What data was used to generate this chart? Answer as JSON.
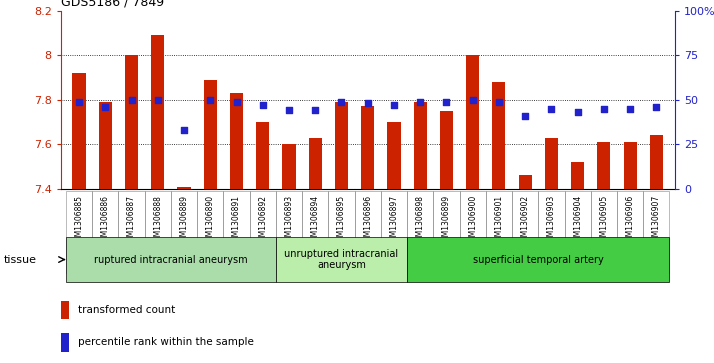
{
  "title": "GDS5186 / 7849",
  "samples": [
    "GSM1306885",
    "GSM1306886",
    "GSM1306887",
    "GSM1306888",
    "GSM1306889",
    "GSM1306890",
    "GSM1306891",
    "GSM1306892",
    "GSM1306893",
    "GSM1306894",
    "GSM1306895",
    "GSM1306896",
    "GSM1306897",
    "GSM1306898",
    "GSM1306899",
    "GSM1306900",
    "GSM1306901",
    "GSM1306902",
    "GSM1306903",
    "GSM1306904",
    "GSM1306905",
    "GSM1306906",
    "GSM1306907"
  ],
  "bar_values": [
    7.92,
    7.79,
    8.0,
    8.09,
    7.41,
    7.89,
    7.83,
    7.7,
    7.6,
    7.63,
    7.79,
    7.77,
    7.7,
    7.79,
    7.75,
    8.0,
    7.88,
    7.46,
    7.63,
    7.52,
    7.61,
    7.61,
    7.64
  ],
  "dot_values": [
    49,
    46,
    50,
    50,
    33,
    50,
    49,
    47,
    44,
    44,
    49,
    48,
    47,
    49,
    49,
    50,
    49,
    41,
    45,
    43,
    45,
    45,
    46
  ],
  "ylim_left": [
    7.4,
    8.2
  ],
  "ylim_right": [
    0,
    100
  ],
  "yticks_left": [
    7.4,
    7.6,
    7.8,
    8.0,
    8.2
  ],
  "ytick_labels_left": [
    "7.4",
    "7.6",
    "7.8",
    "8",
    "8.2"
  ],
  "yticks_right": [
    0,
    25,
    50,
    75,
    100
  ],
  "ytick_labels_right": [
    "0",
    "25",
    "50",
    "75",
    "100%"
  ],
  "bar_color": "#cc2200",
  "dot_color": "#2222cc",
  "grid_values": [
    7.6,
    7.8,
    8.0
  ],
  "groups": [
    {
      "label": "ruptured intracranial aneurysm",
      "start": 0,
      "end": 8,
      "color": "#aaddaa"
    },
    {
      "label": "unruptured intracranial\naneurysm",
      "start": 8,
      "end": 13,
      "color": "#bbeeaa"
    },
    {
      "label": "superficial temporal artery",
      "start": 13,
      "end": 23,
      "color": "#44cc44"
    }
  ],
  "tissue_label": "tissue",
  "legend_bar_label": "transformed count",
  "legend_dot_label": "percentile rank within the sample",
  "xtick_bg_color": "#cccccc",
  "plot_bg_color": "#ffffff",
  "bar_width": 0.5
}
